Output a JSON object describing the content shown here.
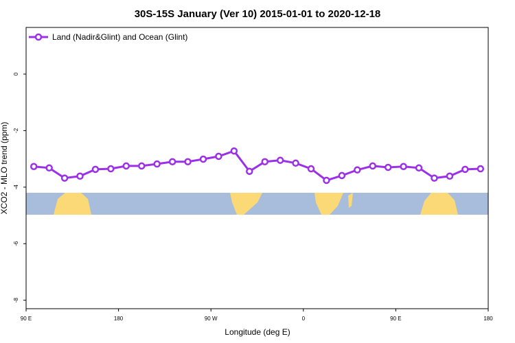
{
  "chart_data": {
    "type": "line",
    "title": "30S-15S January (Ver 10)   2015-01-01 to 2020-12-18",
    "x_label": "Longitude (deg E)",
    "y_label": "XCO2 - MLO trend (ppm)",
    "x": [
      97.5,
      112.5,
      127.5,
      142.5,
      157.5,
      172.5,
      187.5,
      202.5,
      217.5,
      232.5,
      247.5,
      262.5,
      277.5,
      292.5,
      307.5,
      322.5,
      337.5,
      352.5,
      367.5,
      382.5,
      397.5,
      412.5,
      427.5,
      442.5,
      457.5,
      472.5,
      487.5,
      502.5,
      517.5,
      532.5
    ],
    "series": [
      {
        "name": "Land (Nadir&Glint) and Ocean (Glint)",
        "color": "#9b30e8",
        "values": [
          -3.27,
          -3.32,
          -3.68,
          -3.61,
          -3.37,
          -3.35,
          -3.25,
          -3.25,
          -3.18,
          -3.1,
          -3.1,
          -3.01,
          -2.91,
          -2.72,
          -3.44,
          -3.1,
          -3.05,
          -3.15,
          -3.35,
          -3.76,
          -3.59,
          -3.39,
          -3.25,
          -3.3,
          -3.27,
          -3.32,
          -3.68,
          -3.61,
          -3.37,
          -3.35
        ]
      }
    ],
    "xlim": [
      90,
      540
    ],
    "xticks": [
      {
        "value": 90,
        "label": "90 E"
      },
      180,
      {
        "value": 270,
        "label": "90 W"
      },
      {
        "value": 360,
        "label": "0"
      },
      {
        "value": 450,
        "label": "90 E"
      },
      {
        "value": 540,
        "label": "180"
      }
    ],
    "ylim": [
      -8.3,
      1.65
    ],
    "yticks": [
      -8,
      -6,
      -4,
      -2,
      0
    ],
    "legend": "top-left"
  }
}
